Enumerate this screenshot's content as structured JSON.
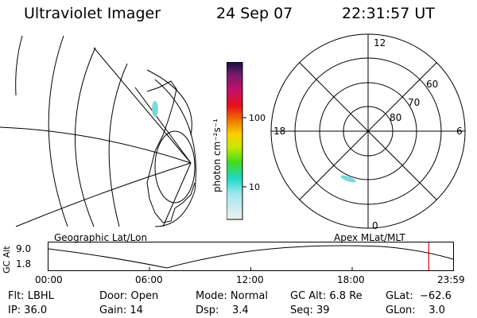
{
  "header": {
    "instrument": "Ultraviolet Imager",
    "date": "24 Sep 07",
    "time": "22:31:57 UT"
  },
  "colorbar": {
    "unit_label": "photon cm⁻²s⁻¹",
    "ticks": [
      "100",
      "10"
    ]
  },
  "polar_plot": {
    "mlt_labels": {
      "top": "12",
      "bottom": "0",
      "left": "18",
      "right": "6"
    },
    "lat_labels": [
      "60",
      "70",
      "80"
    ]
  },
  "timeline": {
    "left_title": "Geographic Lat/Lon",
    "right_title": "Apex MLat/MLT",
    "axis_title": "GC Alt",
    "y_ticks": [
      "9.0",
      "1.8"
    ],
    "x_ticks": [
      "00:00",
      "06:00",
      "12:00",
      "18:00",
      "23:59"
    ],
    "cursor_hour": 22.53
  },
  "status": {
    "flt": "Flt: LBHL",
    "ip": "IP: 36.0",
    "door": "Door: Open",
    "gain": "Gain: 14",
    "mode": "Mode: Normal",
    "dsp": "Dsp:    3.4",
    "gcalt": "GC Alt: 6.8 Re",
    "seq": "Seq: 39",
    "glat": "GLat:  −62.6",
    "glon": "GLon:    3.0"
  }
}
